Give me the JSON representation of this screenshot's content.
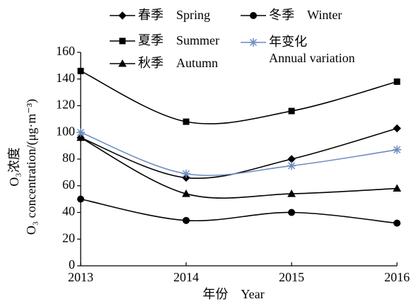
{
  "chart_data": {
    "type": "line",
    "x": [
      2013,
      2014,
      2015,
      2016
    ],
    "xlim": [
      2013,
      2016
    ],
    "xticks": [
      2013,
      2014,
      2015,
      2016
    ],
    "ylim": [
      0,
      160
    ],
    "yticks": [
      0,
      20,
      40,
      60,
      80,
      100,
      120,
      140,
      160
    ],
    "xlabel": "年份　Year",
    "ylabel": [
      "O₃浓度",
      "O₃ concentration/(μg·m⁻³)"
    ],
    "series": [
      {
        "name": "春季　Spring",
        "color": "#000000",
        "marker": "diamond",
        "values": [
          96,
          66,
          80,
          103
        ]
      },
      {
        "name": "夏季　Summer",
        "color": "#000000",
        "marker": "square",
        "values": [
          146,
          108,
          116,
          138
        ]
      },
      {
        "name": "秋季　Autumn",
        "color": "#000000",
        "marker": "triangle",
        "values": [
          96,
          54,
          54,
          58
        ]
      },
      {
        "name": "冬季　Winter",
        "color": "#000000",
        "marker": "circle",
        "values": [
          50,
          34,
          40,
          32
        ]
      },
      {
        "name": "年变化\nAnnual variation",
        "color": "#6d8cc2",
        "marker": "asterisk",
        "values": [
          100,
          69,
          75,
          87
        ]
      }
    ]
  }
}
